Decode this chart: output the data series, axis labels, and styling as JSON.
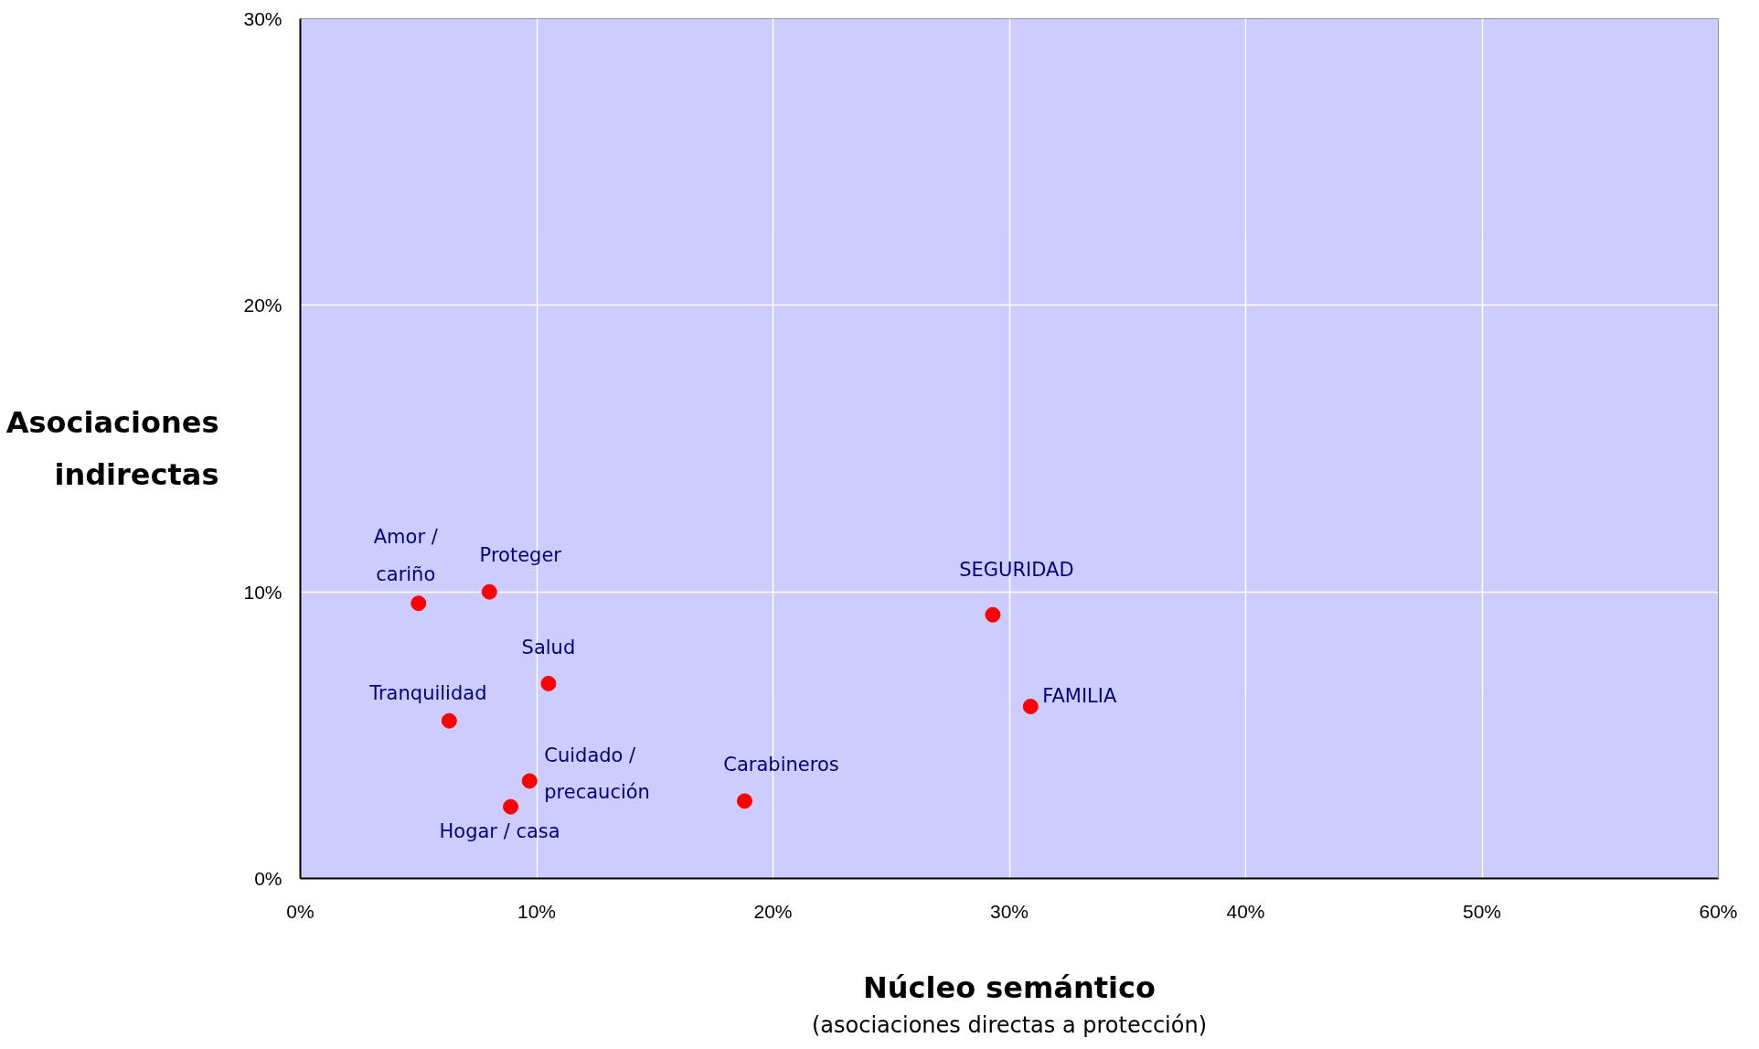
{
  "chart_data": {
    "type": "scatter",
    "xlabel": "Núcleo semántico",
    "ylabel": "Asociaciones\nindirectas",
    "x": [
      5.0,
      8.0,
      10.5,
      6.3,
      9.7,
      8.9,
      18.8,
      29.3,
      30.9
    ],
    "series": [
      {
        "color": "#ff0000",
        "values": [
          9.6,
          10.0,
          6.8,
          5.5,
          3.4,
          2.5,
          2.7,
          9.2,
          6.0
        ]
      }
    ],
    "marker": "circle",
    "xlim": [
      0,
      60
    ],
    "ylim": [
      0,
      30
    ],
    "xticks": [
      {
        "value": 0,
        "label": "0%"
      },
      {
        "value": 10,
        "label": "10%"
      },
      {
        "value": 20,
        "label": "20%"
      },
      {
        "value": 30,
        "label": "30%"
      },
      {
        "value": 40,
        "label": "40%"
      },
      {
        "value": 50,
        "label": "50%"
      },
      {
        "value": 60,
        "label": "60%"
      }
    ],
    "yticks": [
      {
        "value": 0,
        "label": "0%"
      },
      {
        "value": 10,
        "label": "10%"
      },
      {
        "value": 20,
        "label": "20%"
      },
      {
        "value": 30,
        "label": "30%"
      }
    ],
    "grid": true,
    "annotations": [
      {
        "text": "Amor /\ncariño",
        "x": 5.0,
        "y": 9.6
      },
      {
        "text": "Proteger",
        "x": 8.0,
        "y": 10.0
      },
      {
        "text": "Salud",
        "x": 10.5,
        "y": 6.8
      },
      {
        "text": "Tranquilidad",
        "x": 6.3,
        "y": 5.5
      },
      {
        "text": "Cuidado /\nprecaución",
        "x": 9.7,
        "y": 3.4
      },
      {
        "text": "Hogar / casa",
        "x": 8.9,
        "y": 2.5
      },
      {
        "text": "Carabineros",
        "x": 18.8,
        "y": 2.7
      },
      {
        "text": "SEGURIDAD",
        "x": 29.3,
        "y": 9.2
      },
      {
        "text": "FAMILIA",
        "x": 30.9,
        "y": 6.0
      },
      "(asociaciones directas a protección)"
    ]
  }
}
